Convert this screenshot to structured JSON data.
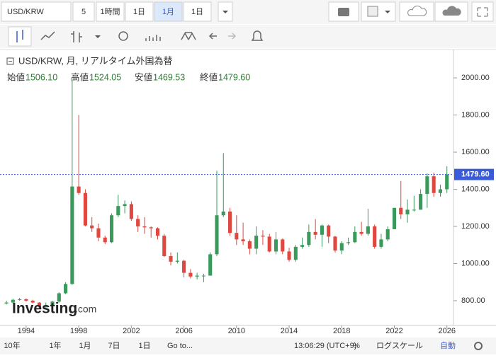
{
  "toolbar": {
    "symbol": "USD/KRW",
    "interval": "5",
    "buttons": [
      "1時間",
      "1日",
      "1月",
      "1日"
    ]
  },
  "legend": {
    "title": "USD/KRW, 月, リアルタイム外国為替",
    "open_label": "始値",
    "open": "1506.10",
    "high_label": "高値",
    "high": "1524.05",
    "low_label": "安値",
    "low": "1469.53",
    "close_label": "終値",
    "close": "1479.60"
  },
  "watermark": {
    "brand": "Investing",
    "suffix": ".com"
  },
  "bottom_bar": {
    "ranges": [
      "10年",
      "1年",
      "1月",
      "7日",
      "1日"
    ],
    "goto": "Go to...",
    "time": "13:06:29 (UTC+9)",
    "percent": "%",
    "log": "ログスケール",
    "auto": "自動"
  },
  "chart_data": {
    "type": "candlestick",
    "up_color": "#3a9a5b",
    "down_color": "#e0473f",
    "x": [
      1992.5,
      1993,
      1993.5,
      1994,
      1994.5,
      1995,
      1995.5,
      1996,
      1996.5,
      1997,
      1997.5,
      1998,
      1998.5,
      1999,
      1999.5,
      2000,
      2000.5,
      2001,
      2001.5,
      2002,
      2002.5,
      2003,
      2003.5,
      2004,
      2004.5,
      2005,
      2005.5,
      2006,
      2006.5,
      2007,
      2007.5,
      2008,
      2008.5,
      2009,
      2009.5,
      2010,
      2010.5,
      2011,
      2011.5,
      2012,
      2012.5,
      2013,
      2013.5,
      2014,
      2014.5,
      2015,
      2015.5,
      2016,
      2016.5,
      2017,
      2017.5,
      2018,
      2018.5,
      2019,
      2019.5,
      2020,
      2020.5,
      2021,
      2021.5,
      2022,
      2022.5,
      2023,
      2023.5,
      2024,
      2024.5,
      2025,
      2025.5,
      2026
    ],
    "open": [
      785,
      790,
      805,
      808,
      800,
      790,
      765,
      775,
      795,
      840,
      890,
      1415,
      1380,
      1205,
      1190,
      1140,
      1115,
      1260,
      1310,
      1320,
      1240,
      1200,
      1195,
      1190,
      1150,
      1040,
      1010,
      1015,
      950,
      930,
      935,
      935,
      1050,
      1260,
      1280,
      1165,
      1130,
      1120,
      1080,
      1150,
      1145,
      1065,
      1130,
      1065,
      1020,
      1090,
      1100,
      1170,
      1155,
      1205,
      1145,
      1070,
      1110,
      1115,
      1170,
      1160,
      1200,
      1090,
      1130,
      1185,
      1300,
      1265,
      1290,
      1290,
      1375,
      1470,
      1380,
      1400
    ],
    "high": [
      800,
      810,
      815,
      812,
      805,
      792,
      790,
      800,
      845,
      900,
      1990,
      1800,
      1400,
      1250,
      1215,
      1150,
      1270,
      1370,
      1340,
      1335,
      1260,
      1250,
      1200,
      1195,
      1160,
      1060,
      1060,
      1020,
      970,
      950,
      945,
      1060,
      1500,
      1595,
      1300,
      1260,
      1220,
      1130,
      1200,
      1180,
      1160,
      1170,
      1135,
      1085,
      1100,
      1140,
      1210,
      1240,
      1210,
      1210,
      1150,
      1120,
      1140,
      1200,
      1225,
      1295,
      1210,
      1160,
      1200,
      1300,
      1445,
      1345,
      1365,
      1400,
      1485,
      1490,
      1425,
      1524
    ],
    "low": [
      780,
      785,
      800,
      795,
      785,
      760,
      760,
      770,
      790,
      835,
      885,
      1370,
      1200,
      1170,
      1120,
      1105,
      1110,
      1250,
      1270,
      1230,
      1170,
      1160,
      1140,
      1130,
      1035,
      990,
      1000,
      925,
      920,
      915,
      900,
      935,
      1040,
      1250,
      1150,
      1100,
      1100,
      1050,
      1050,
      1100,
      1060,
      1050,
      1050,
      1010,
      1010,
      1080,
      1090,
      1130,
      1090,
      1110,
      1060,
      1050,
      1100,
      1110,
      1150,
      1150,
      1080,
      1080,
      1120,
      1185,
      1240,
      1220,
      1280,
      1290,
      1300,
      1360,
      1360,
      1380
    ],
    "close": [
      790,
      805,
      808,
      800,
      790,
      765,
      775,
      795,
      840,
      890,
      1415,
      1380,
      1205,
      1190,
      1140,
      1115,
      1260,
      1310,
      1320,
      1240,
      1200,
      1195,
      1190,
      1150,
      1040,
      1010,
      1015,
      950,
      930,
      935,
      935,
      1050,
      1260,
      1280,
      1165,
      1130,
      1120,
      1080,
      1150,
      1145,
      1065,
      1130,
      1065,
      1020,
      1090,
      1100,
      1170,
      1155,
      1205,
      1145,
      1070,
      1110,
      1115,
      1170,
      1160,
      1200,
      1090,
      1130,
      1185,
      1300,
      1265,
      1290,
      1290,
      1375,
      1470,
      1380,
      1400,
      1480
    ],
    "xlim": [
      1992.28,
      2026.5
    ],
    "xticks": [
      1994,
      1998,
      2002,
      2006,
      2010,
      2014,
      2018,
      2022,
      2026
    ],
    "ylim": [
      678,
      2145
    ],
    "yticks": [
      {
        "value": 800,
        "label": "800.00"
      },
      {
        "value": 1000,
        "label": "1000.00"
      },
      {
        "value": 1200,
        "label": "1200.00"
      },
      {
        "value": 1400,
        "label": "1400.00"
      },
      {
        "value": 1600,
        "label": "1600.00"
      },
      {
        "value": 1800,
        "label": "1800.00"
      },
      {
        "value": 2000,
        "label": "2000.00"
      }
    ],
    "last_price": {
      "value": 1479.6,
      "label": "1479.60"
    },
    "last_color": "#3a5bd9"
  }
}
